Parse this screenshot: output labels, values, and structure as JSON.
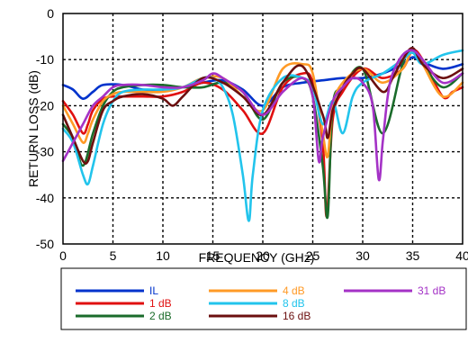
{
  "chart_data": {
    "type": "line",
    "title": "",
    "xlabel": "FREQUENCY (GHz)",
    "ylabel": "RETURN LOSS (dB)",
    "xlim": [
      0,
      40
    ],
    "ylim": [
      -50,
      0
    ],
    "xticks": [
      0,
      5,
      10,
      15,
      20,
      25,
      30,
      35,
      40
    ],
    "yticks": [
      0,
      -10,
      -20,
      -30,
      -40,
      -50
    ],
    "grid": true,
    "legend_position": "bottom",
    "series": [
      {
        "name": "IL",
        "color": "#0033cc",
        "x": [
          0,
          1,
          2,
          3,
          4,
          6,
          8,
          10,
          12,
          14,
          16,
          18,
          20,
          22,
          24,
          26,
          28,
          30,
          32,
          34,
          35,
          36,
          38,
          40
        ],
        "y": [
          -15.5,
          -16.5,
          -18.5,
          -17,
          -15.5,
          -15.5,
          -16.5,
          -16.5,
          -16,
          -15,
          -14.5,
          -16.5,
          -20,
          -16,
          -15,
          -14.5,
          -14,
          -14,
          -13,
          -11,
          -9.5,
          -10.5,
          -12,
          -11
        ]
      },
      {
        "name": "1 dB",
        "color": "#e01010",
        "x": [
          0,
          1,
          2,
          2.5,
          3,
          4,
          5,
          6,
          8,
          10,
          12,
          14,
          16,
          18,
          20,
          22,
          24,
          25,
          26,
          26.4,
          27,
          28,
          30,
          32,
          34,
          35,
          36,
          38,
          39,
          40
        ],
        "y": [
          -19,
          -22,
          -26,
          -24,
          -21,
          -18.5,
          -18,
          -18,
          -18,
          -18,
          -17,
          -15,
          -16.5,
          -21,
          -26,
          -16,
          -13,
          -15,
          -28,
          -44,
          -23,
          -17,
          -12,
          -14,
          -12,
          -8,
          -10,
          -18,
          -17,
          -16
        ]
      },
      {
        "name": "2 dB",
        "color": "#1a6b2a",
        "x": [
          0,
          1,
          2,
          3,
          4,
          5,
          6,
          8,
          10,
          12,
          14,
          16,
          18,
          20,
          22,
          24,
          25,
          26,
          26.5,
          27,
          28,
          30,
          32,
          34,
          35,
          36,
          38,
          40
        ],
        "y": [
          -24,
          -27,
          -33,
          -26,
          -20,
          -17,
          -16,
          -15.5,
          -15.5,
          -16,
          -16,
          -15,
          -17,
          -23,
          -15,
          -14,
          -18,
          -33,
          -44,
          -20,
          -16,
          -12,
          -26,
          -11,
          -8,
          -11,
          -16,
          -13
        ]
      },
      {
        "name": "4 dB",
        "color": "#ff9a26",
        "x": [
          0,
          1,
          2,
          2.5,
          3,
          4,
          5,
          6,
          8,
          10,
          12,
          14,
          16,
          18,
          20,
          22,
          24,
          25,
          26,
          26.5,
          27,
          28,
          30,
          32,
          34,
          35,
          36,
          38,
          40
        ],
        "y": [
          -20,
          -24,
          -28,
          -26,
          -23,
          -19,
          -17.5,
          -17,
          -17,
          -17,
          -16,
          -14,
          -14,
          -18,
          -21,
          -12,
          -11,
          -13,
          -26,
          -31,
          -20,
          -15,
          -12,
          -15,
          -12,
          -8,
          -11,
          -18,
          -15
        ]
      },
      {
        "name": "8 dB",
        "color": "#22c4ec",
        "x": [
          0,
          1,
          2,
          2.5,
          3,
          4,
          5,
          6,
          8,
          10,
          12,
          14,
          15,
          16,
          17,
          18,
          18.6,
          19,
          20,
          22,
          24,
          25,
          26,
          27,
          28,
          29,
          30,
          32,
          34,
          35,
          36,
          38,
          40
        ],
        "y": [
          -25,
          -28,
          -35,
          -37,
          -33,
          -24,
          -19,
          -17,
          -16.5,
          -16.5,
          -16,
          -14,
          -14,
          -16,
          -22,
          -35,
          -45,
          -35,
          -21,
          -14,
          -14,
          -16,
          -24,
          -19,
          -26,
          -18,
          -15,
          -13,
          -10,
          -8.5,
          -11,
          -9,
          -8
        ]
      },
      {
        "name": "16 dB",
        "color": "#6b0f0f",
        "x": [
          0,
          1,
          2,
          2.5,
          3,
          4,
          5,
          6,
          8,
          10,
          11,
          12,
          14,
          16,
          18,
          20,
          22,
          24,
          26,
          26.5,
          27,
          28,
          29,
          30,
          32,
          33,
          34,
          35,
          36,
          38,
          40
        ],
        "y": [
          -22,
          -27,
          -32,
          -32,
          -28,
          -21,
          -19,
          -18,
          -17.5,
          -18.5,
          -20,
          -18,
          -14,
          -15,
          -18,
          -22,
          -15,
          -11.5,
          -22,
          -27,
          -21,
          -16,
          -13,
          -12,
          -17,
          -14,
          -10,
          -7.5,
          -11,
          -14,
          -12
        ]
      },
      {
        "name": "31 dB",
        "color": "#a432c6",
        "x": [
          0,
          1,
          2,
          3,
          4,
          5,
          6,
          8,
          10,
          12,
          14,
          15,
          16,
          18,
          20,
          22,
          24,
          25,
          25.6,
          26,
          27,
          28,
          29,
          30,
          31,
          31.6,
          32,
          32.5,
          33,
          34,
          35,
          36,
          38,
          40
        ],
        "y": [
          -32,
          -28,
          -24,
          -20,
          -18,
          -16,
          -15.5,
          -15.5,
          -16,
          -16,
          -14.5,
          -13,
          -14,
          -17,
          -22,
          -17,
          -14,
          -18,
          -32,
          -27,
          -19,
          -16,
          -14,
          -15,
          -20,
          -36,
          -28,
          -18,
          -13,
          -9,
          -8,
          -10,
          -15,
          -13
        ]
      }
    ]
  }
}
